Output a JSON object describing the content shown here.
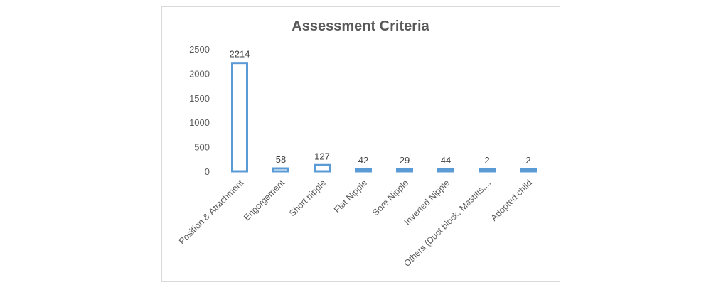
{
  "chart_data": {
    "type": "bar",
    "title": "Assessment Criteria",
    "xlabel": "",
    "ylabel": "",
    "ylim": [
      0,
      2500
    ],
    "yticks": [
      0,
      500,
      1000,
      1500,
      2000,
      2500
    ],
    "grid": false,
    "legend": "none",
    "categories": [
      "Position & Attachment",
      "Engorgement",
      "Short nipple",
      "Flat Nipple",
      "Sore Nipple",
      "Inverted Nipple",
      "Others (Duct block, Mastitis,...",
      "Adopted child"
    ],
    "values": [
      2214,
      58,
      127,
      42,
      29,
      44,
      2,
      2
    ],
    "data_labels": [
      "2214",
      "58",
      "127",
      "42",
      "29",
      "44",
      "2",
      "2"
    ],
    "colors": {
      "bar_outline": "#5b9bd5",
      "bar_fill": "#ffffff",
      "text": "#595959"
    }
  }
}
